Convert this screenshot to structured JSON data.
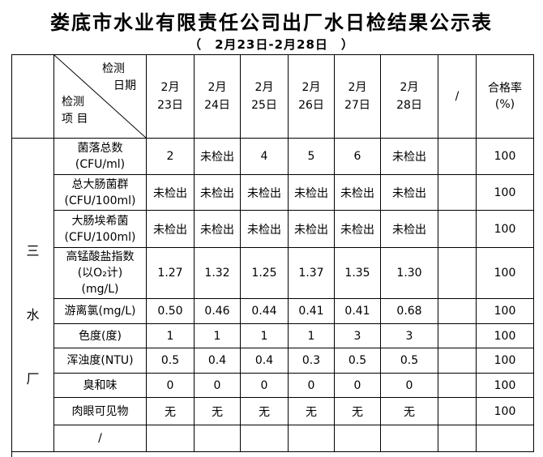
{
  "page": {
    "title": "娄底市水业有限责任公司出厂水日检结果公示表",
    "subtitle": "（　2月23日-2月28日　）"
  },
  "table": {
    "corner": {
      "date_label_lines": [
        "检测",
        "日期"
      ],
      "item_label_lines": [
        "检测",
        "项 目"
      ]
    },
    "date_columns": [
      [
        "2月",
        "23日"
      ],
      [
        "2月",
        "24日"
      ],
      [
        "2月",
        "25日"
      ],
      [
        "2月",
        "26日"
      ],
      [
        "2月",
        "27日"
      ],
      [
        "2月",
        "28日"
      ]
    ],
    "slash_header": "/",
    "pass_rate_header_lines": [
      "合格率",
      "(%)"
    ],
    "plant_label": [
      "三",
      "水",
      "厂"
    ],
    "rows": [
      {
        "name_lines": [
          "菌落总数",
          "(CFU/ml)"
        ],
        "values": [
          "2",
          "未检出",
          "4",
          "5",
          "6",
          "未检出"
        ],
        "slash": "",
        "pass_rate": "100"
      },
      {
        "name_lines": [
          "总大肠菌群",
          "(CFU/100ml)"
        ],
        "values": [
          "未检出",
          "未检出",
          "未检出",
          "未检出",
          "未检出",
          "未检出"
        ],
        "slash": "",
        "pass_rate": "100"
      },
      {
        "name_lines": [
          "大肠埃希菌",
          "(CFU/100ml)"
        ],
        "values": [
          "未检出",
          "未检出",
          "未检出",
          "未检出",
          "未检出",
          "未检出"
        ],
        "slash": "",
        "pass_rate": "100"
      },
      {
        "name_lines": [
          "高锰酸盐指数",
          "(以O₂计)",
          "(mg/L)"
        ],
        "values": [
          "1.27",
          "1.32",
          "1.25",
          "1.37",
          "1.35",
          "1.30"
        ],
        "slash": "",
        "pass_rate": "100"
      },
      {
        "name_lines": [
          "游离氯(mg/L)"
        ],
        "values": [
          "0.50",
          "0.46",
          "0.44",
          "0.41",
          "0.41",
          "0.68"
        ],
        "slash": "",
        "pass_rate": "100"
      },
      {
        "name_lines": [
          "色度(度)"
        ],
        "values": [
          "1",
          "1",
          "1",
          "1",
          "3",
          "3"
        ],
        "slash": "",
        "pass_rate": "100"
      },
      {
        "name_lines": [
          "浑浊度(NTU)"
        ],
        "values": [
          "0.5",
          "0.4",
          "0.4",
          "0.3",
          "0.5",
          "0.5"
        ],
        "slash": "",
        "pass_rate": "100"
      },
      {
        "name_lines": [
          "臭和味"
        ],
        "values": [
          "0",
          "0",
          "0",
          "0",
          "0",
          "0"
        ],
        "slash": "",
        "pass_rate": "100"
      },
      {
        "name_lines": [
          "肉眼可见物"
        ],
        "values": [
          "无",
          "无",
          "无",
          "无",
          "无",
          "无"
        ],
        "slash": "",
        "pass_rate": "100"
      },
      {
        "name_lines": [
          "/"
        ],
        "values": [
          "",
          "",
          "",
          "",
          "",
          ""
        ],
        "slash": "",
        "pass_rate": ""
      }
    ]
  }
}
